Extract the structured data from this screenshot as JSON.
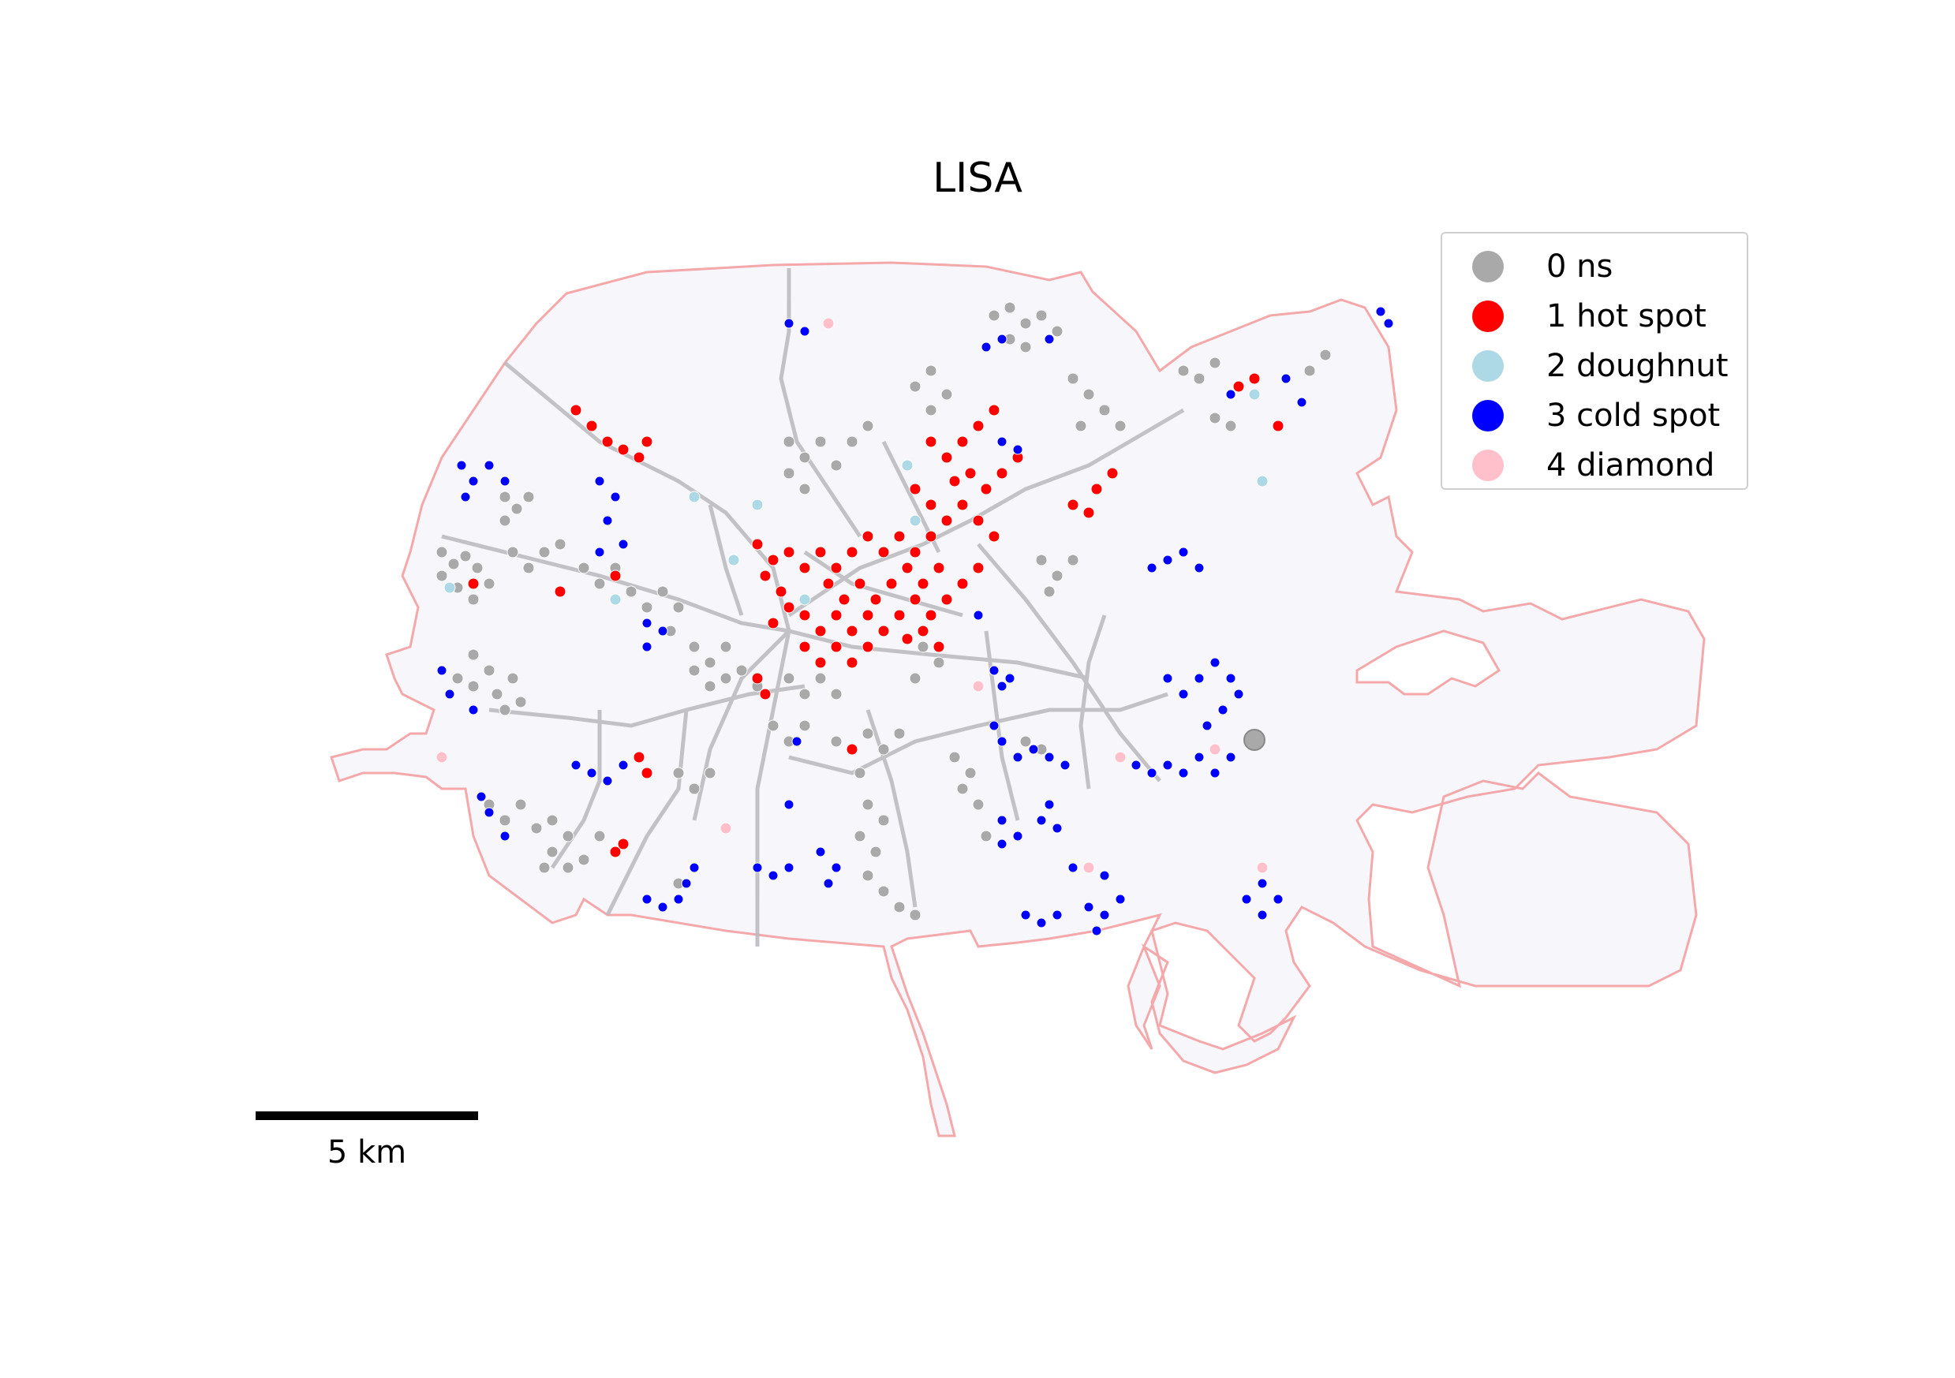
{
  "title": "LISA",
  "legend": {
    "items": [
      {
        "label": "0 ns",
        "color": "#a9a9a9"
      },
      {
        "label": "1 hot spot",
        "color": "#ff0000"
      },
      {
        "label": "2 doughnut",
        "color": "#add8e6"
      },
      {
        "label": "3 cold spot",
        "color": "#0000ff"
      },
      {
        "label": "4 diamond",
        "color": "#ffc0cb"
      }
    ]
  },
  "scalebar": {
    "label": "5 km"
  },
  "colors": {
    "boundary": "#f4a8aa",
    "fill": "#f6f6fb",
    "roads": "#b9b9bd"
  },
  "clusters": {
    "ns": "gray point clusters covering most of the city",
    "hot_spot": "red cluster concentrated in city center",
    "cold_spot": "blue clusters mainly along the periphery",
    "doughnut": "light blue scattered points",
    "diamond": "pink scattered points"
  }
}
